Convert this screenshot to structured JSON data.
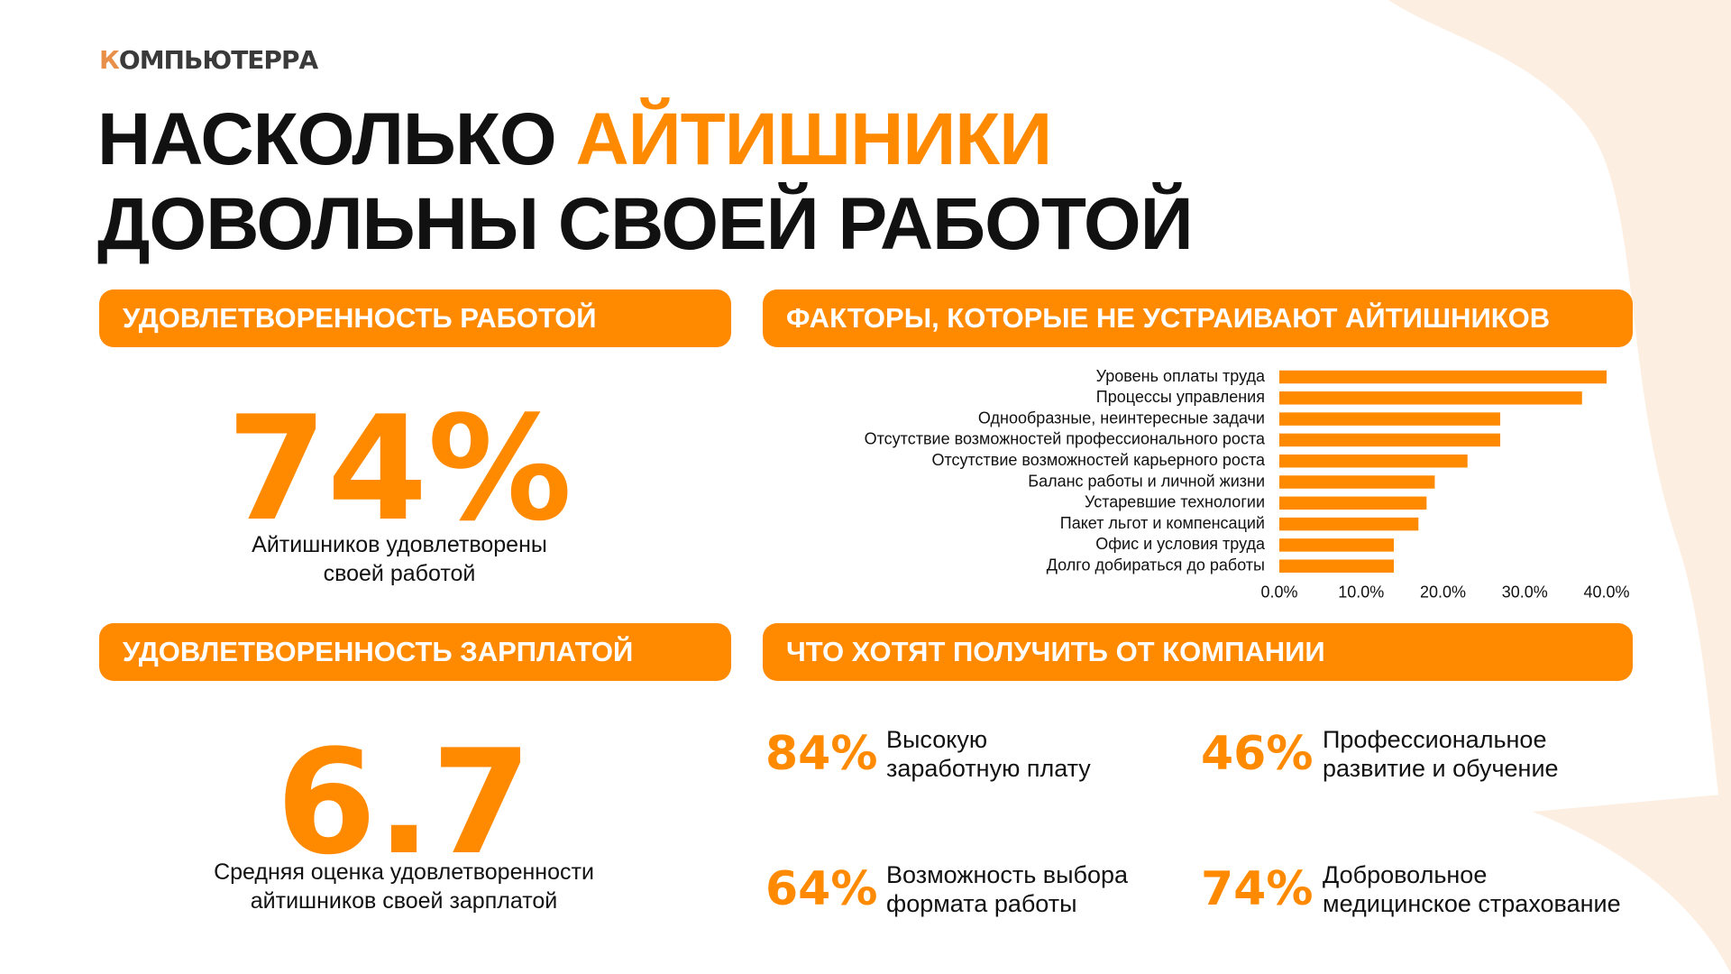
{
  "header": {
    "logo": "КОМПЬЮТЕРРА",
    "title_part1": "НАСКОЛЬКО",
    "title_highlight": "АЙТИШНИКИ",
    "title_line2": "ДОВОЛЬНЫ СВОЕЙ РАБОТОЙ"
  },
  "job_satisfaction": {
    "heading": "УДОВЛЕТВОРЕННОСТЬ РАБОТОЙ",
    "figure": "74%",
    "caption": [
      "Айтишников удовлетворены",
      "своей работой"
    ]
  },
  "salary_satisfaction": {
    "heading": "УДОВЛЕТВОРЕННОСТЬ ЗАРПЛАТОЙ",
    "figure": "6.7",
    "caption": [
      "Средняя оценка удовлетворенности",
      "айтишников своей зарплатой"
    ]
  },
  "factors": {
    "heading": "ФАКТОРЫ, КОТОРЫЕ НЕ УСТРАИВАЮТ АЙТИШНИКОВ"
  },
  "chart_data": {
    "type": "hbar",
    "categories": [
      "Уровень оплаты труда",
      "Процессы управления",
      "Однообразные, неинтересные задачи",
      "Отсутствие возможностей профессионального роста",
      "Отсутствие возможностей карьерного роста",
      "Баланс работы и личной жизни",
      "Устаревшие технологии",
      "Пакет льгот и компенсаций",
      "Офис и условия труда",
      "Долго добираться до работы"
    ],
    "values": [
      40,
      37,
      27,
      27,
      23,
      19,
      18,
      17,
      14,
      14
    ],
    "color": "#ff8a00",
    "xlim": [
      0,
      40
    ],
    "xticks": [
      {
        "value": 0,
        "label": "0.0%"
      },
      {
        "value": 10,
        "label": "10.0%"
      },
      {
        "value": 20,
        "label": "20.0%"
      },
      {
        "value": 30,
        "label": "30.0%"
      },
      {
        "value": 40,
        "label": "40.0%"
      }
    ],
    "grid": false
  },
  "wants": {
    "heading": "ЧТО ХОТЯТ ПОЛУЧИТЬ ОТ КОМПАНИИ",
    "items": [
      {
        "percent": "84%",
        "text": [
          "Высокую",
          "заработную плату"
        ]
      },
      {
        "percent": "46%",
        "text": [
          "Профессиональное",
          "развитие и обучение"
        ]
      },
      {
        "percent": "64%",
        "text": [
          "Возможность выбора",
          "формата работы"
        ]
      },
      {
        "percent": "74%",
        "text": [
          "Добровольное",
          "медицинское страхование"
        ]
      }
    ]
  }
}
